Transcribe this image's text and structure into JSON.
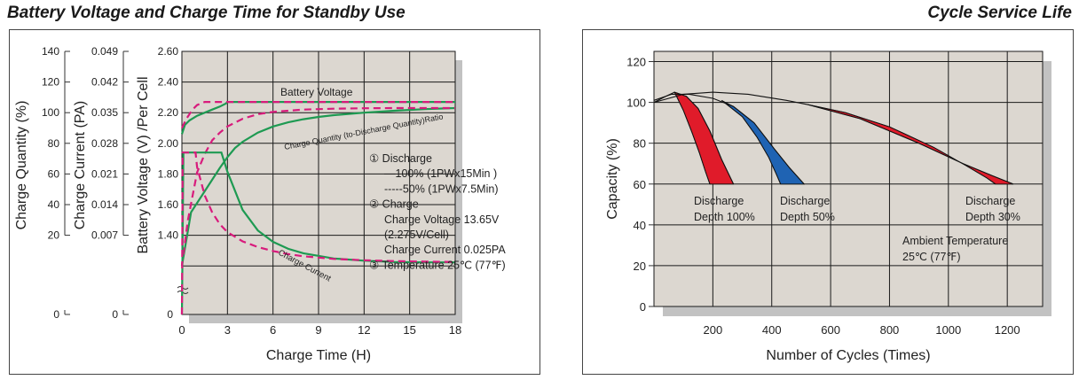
{
  "headings": {
    "left": "Battery Voltage and Charge Time for Standby Use",
    "right": "Cycle Service Life"
  },
  "colors": {
    "plot_bg": "#dcd7d0",
    "shadow": "#c2c2c2",
    "grid": "#1a1a1a",
    "green": "#1e9a52",
    "magenta": "#d81b7c",
    "red": "#e01b2a",
    "blue": "#1f63b3"
  },
  "chart_data": [
    {
      "type": "line",
      "xlabel": "Charge Time (H)",
      "x_ticks": [
        "0",
        "3",
        "6",
        "9",
        "12",
        "15",
        "18"
      ],
      "xlim": [
        0,
        18
      ],
      "axes": [
        {
          "label": "Battery Voltage (V) /Per Cell",
          "ticks": [
            "2.60",
            "2.40",
            "2.20",
            "2.00",
            "1.80",
            "1.60",
            "1.40",
            "0"
          ]
        },
        {
          "label": "Charge Current (PA)",
          "ticks": [
            "0.049",
            "0.042",
            "0.035",
            "0.028",
            "0.021",
            "0.014",
            "0.007",
            "0"
          ]
        },
        {
          "label": "Charge Quantity (%)",
          "ticks": [
            "140",
            "120",
            "100",
            "80",
            "60",
            "40",
            "20",
            "0"
          ]
        }
      ],
      "curve_labels": {
        "voltage": "Battery Voltage",
        "quantity": "Charge Quantity (to-Discharge Quantity)Ratio",
        "current": "Charge Current"
      },
      "series": [
        {
          "name": "Battery Voltage",
          "style": "solid",
          "x": [
            0,
            0.2,
            0.5,
            1,
            1.5,
            2,
            2.5,
            2.9,
            3,
            6,
            9,
            12,
            15,
            18
          ],
          "y": [
            2.06,
            2.12,
            2.15,
            2.18,
            2.2,
            2.22,
            2.24,
            2.26,
            2.27,
            2.27,
            2.27,
            2.27,
            2.27,
            2.27
          ]
        },
        {
          "name": "Battery Voltage",
          "style": "dashed",
          "x": [
            0,
            0.3,
            0.7,
            1,
            1.5,
            2,
            6,
            12,
            18
          ],
          "y": [
            2.1,
            2.16,
            2.22,
            2.25,
            2.27,
            2.27,
            2.27,
            2.27,
            2.27
          ]
        },
        {
          "name": "Charge Quantity",
          "style": "solid",
          "x": [
            0,
            0.6,
            2.5,
            3,
            3.5,
            4,
            5,
            6,
            7,
            8,
            9,
            10,
            12,
            14,
            16,
            18
          ],
          "y": [
            0,
            35,
            64,
            71,
            77,
            81,
            87,
            91,
            93.7,
            95.7,
            97.2,
            98.4,
            100,
            101.3,
            102.3,
            103
          ]
        },
        {
          "name": "Charge Quantity",
          "style": "dashed",
          "x": [
            0,
            0.4,
            1,
            1.5,
            2,
            2.5,
            3,
            4,
            5,
            6,
            8,
            10,
            12,
            14,
            16,
            18
          ],
          "y": [
            0,
            30,
            61,
            73,
            82,
            87,
            91,
            96,
            99,
            100.5,
            102,
            102.6,
            102.9,
            103,
            103,
            103
          ]
        },
        {
          "name": "Charge Current",
          "style": "solid",
          "x": [
            0,
            0.1,
            2.6,
            3,
            4,
            5,
            6,
            7,
            8,
            10,
            12,
            14,
            16,
            18
          ],
          "y": [
            0,
            0.0259,
            0.0259,
            0.0215,
            0.0128,
            0.0081,
            0.0055,
            0.0039,
            0.0029,
            0.0017,
            0.0012,
            0.0009,
            0.0008,
            0.0008
          ]
        },
        {
          "name": "Charge Current",
          "style": "dashed",
          "x": [
            0,
            0.05,
            0.9,
            1,
            1.5,
            2,
            2.5,
            3,
            4,
            5,
            6,
            7,
            8,
            10,
            12,
            14,
            16,
            18
          ],
          "y": [
            0,
            0.0259,
            0.0259,
            0.0226,
            0.0161,
            0.0122,
            0.0095,
            0.0077,
            0.0056,
            0.0043,
            0.0034,
            0.0027,
            0.0022,
            0.0016,
            0.0013,
            0.0011,
            0.001,
            0.0009
          ]
        }
      ],
      "legend_notes": [
        "① Discharge",
        "—100% (1PWx15Min )",
        "-----50% (1PWx7.5Min)",
        "② Charge",
        "Charge Voltage 13.65V",
        "(2.275V/Cell)",
        "Charge Current 0.025PA",
        "③ Temperature 25℃ (77℉)"
      ]
    },
    {
      "type": "area",
      "xlabel": "Number of Cycles (Times)",
      "ylabel": "Capacity (%)",
      "x_ticks": [
        "200",
        "400",
        "600",
        "800",
        "1000",
        "1200"
      ],
      "y_ticks": [
        "120",
        "100",
        "80",
        "60",
        "40",
        "20",
        "0"
      ],
      "xlim": [
        0,
        1320
      ],
      "ylim": [
        0,
        125
      ],
      "series": [
        {
          "name": "Discharge Depth 100%",
          "color": "red",
          "upper": [
            [
              0,
              100
            ],
            [
              40,
              103
            ],
            [
              70,
              105
            ],
            [
              110,
              103
            ],
            [
              150,
              97
            ],
            [
              190,
              86
            ],
            [
              230,
              72
            ],
            [
              270,
              60
            ]
          ],
          "lower": [
            [
              70,
              105
            ],
            [
              100,
              96
            ],
            [
              130,
              85
            ],
            [
              155,
              75
            ],
            [
              175,
              66
            ],
            [
              190,
              60
            ]
          ]
        },
        {
          "name": "Discharge Depth 50%",
          "color": "blue",
          "upper": [
            [
              0,
              101
            ],
            [
              60,
              104
            ],
            [
              120,
              104
            ],
            [
              200,
              102
            ],
            [
              270,
              98
            ],
            [
              340,
              90
            ],
            [
              410,
              77
            ],
            [
              460,
              68
            ],
            [
              510,
              60
            ]
          ],
          "lower": [
            [
              230,
              101
            ],
            [
              300,
              93
            ],
            [
              350,
              83
            ],
            [
              390,
              73
            ],
            [
              415,
              65
            ],
            [
              430,
              60
            ]
          ]
        },
        {
          "name": "Discharge Depth 30%",
          "color": "red",
          "upper": [
            [
              0,
              100
            ],
            [
              100,
              104
            ],
            [
              200,
              105
            ],
            [
              320,
              104
            ],
            [
              450,
              101
            ],
            [
              520,
              99
            ],
            [
              700,
              92
            ],
            [
              900,
              80
            ],
            [
              1050,
              70
            ],
            [
              1150,
              64
            ],
            [
              1220,
              60
            ]
          ],
          "lower": [
            [
              520,
              99
            ],
            [
              650,
              95
            ],
            [
              800,
              88
            ],
            [
              950,
              78
            ],
            [
              1060,
              69
            ],
            [
              1130,
              63
            ],
            [
              1160,
              60
            ]
          ]
        }
      ],
      "series_labels": [
        {
          "line1": "Discharge",
          "line2": "Depth 100%"
        },
        {
          "line1": "Discharge",
          "line2": "Depth 50%"
        },
        {
          "line1": "Discharge",
          "line2": "Depth 30%"
        }
      ],
      "annotation": {
        "line1": "Ambient Temperature",
        "line2": "25℃ (77℉)"
      }
    }
  ]
}
